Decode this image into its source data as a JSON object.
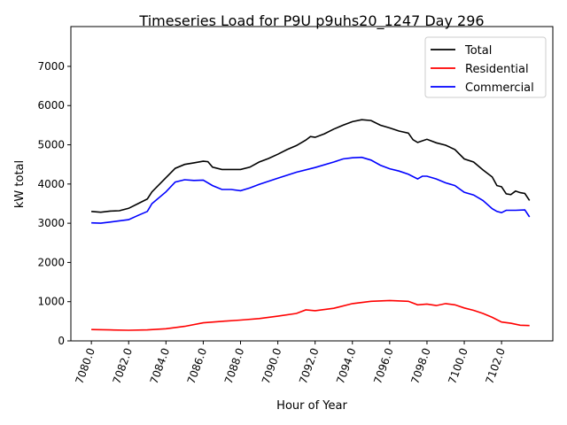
{
  "chart_data": {
    "type": "line",
    "title": "Timeseries Load for P9U p9uhs20_1247  Day 296",
    "xlabel": "Hour of Year",
    "ylabel": "kW total",
    "xlim": [
      7078.9,
      7104.75
    ],
    "ylim": [
      0,
      8015
    ],
    "xticks": [
      7080,
      7082,
      7084,
      7086,
      7088,
      7090,
      7092,
      7094,
      7096,
      7098,
      7100,
      7102
    ],
    "xtick_labels": [
      "7080.0",
      "7082.0",
      "7084.0",
      "7086.0",
      "7088.0",
      "7090.0",
      "7092.0",
      "7094.0",
      "7096.0",
      "7098.0",
      "7100.0",
      "7102.0"
    ],
    "yticks": [
      0,
      1000,
      2000,
      3000,
      4000,
      5000,
      6000,
      7000
    ],
    "ytick_labels": [
      "0",
      "1000",
      "2000",
      "3000",
      "4000",
      "5000",
      "6000",
      "7000"
    ],
    "grid": false,
    "legend_position": "top-right",
    "series": [
      {
        "name": "Total",
        "color": "#000000",
        "x": [
          7080,
          7080.5,
          7081,
          7081.5,
          7082,
          7082.5,
          7083,
          7083.25,
          7084,
          7084.5,
          7085,
          7085.5,
          7086,
          7086.25,
          7086.5,
          7087,
          7087.5,
          7088,
          7088.5,
          7089,
          7089.5,
          7090,
          7090.5,
          7091,
          7091.5,
          7091.75,
          7092,
          7092.5,
          7093,
          7093.5,
          7094,
          7094.5,
          7095,
          7095.5,
          7096,
          7096.5,
          7097,
          7097.25,
          7097.5,
          7098,
          7098.5,
          7099,
          7099.5,
          7100,
          7100.5,
          7101,
          7101.5,
          7101.75,
          7102,
          7102.25,
          7102.5,
          7102.75,
          7103,
          7103.25,
          7103.5
        ],
        "y": [
          3300,
          3280,
          3310,
          3320,
          3380,
          3500,
          3620,
          3800,
          4160,
          4400,
          4500,
          4540,
          4580,
          4570,
          4430,
          4370,
          4370,
          4370,
          4430,
          4560,
          4650,
          4760,
          4880,
          4980,
          5120,
          5210,
          5190,
          5280,
          5400,
          5500,
          5590,
          5640,
          5620,
          5500,
          5430,
          5350,
          5300,
          5130,
          5060,
          5140,
          5050,
          4990,
          4880,
          4640,
          4560,
          4360,
          4180,
          3960,
          3930,
          3750,
          3730,
          3820,
          3780,
          3760,
          3580
        ]
      },
      {
        "name": "Residential",
        "color": "#ff0000",
        "x": [
          7080,
          7081,
          7082,
          7083,
          7084,
          7085,
          7086,
          7087,
          7088,
          7089,
          7090,
          7091,
          7091.5,
          7092,
          7093,
          7094,
          7095,
          7096,
          7097,
          7097.5,
          7098,
          7098.5,
          7099,
          7099.5,
          7100,
          7100.5,
          7101,
          7101.5,
          7102,
          7102.5,
          7103,
          7103.5
        ],
        "y": [
          290,
          280,
          270,
          280,
          310,
          370,
          460,
          500,
          530,
          570,
          630,
          700,
          790,
          770,
          830,
          950,
          1010,
          1030,
          1010,
          920,
          940,
          900,
          950,
          920,
          840,
          780,
          700,
          600,
          480,
          450,
          400,
          390
        ]
      },
      {
        "name": "Commercial",
        "color": "#0000ff",
        "x": [
          7080,
          7080.5,
          7081,
          7082,
          7082.5,
          7083,
          7083.25,
          7084,
          7084.5,
          7085,
          7085.5,
          7086,
          7086.5,
          7087,
          7087.5,
          7088,
          7088.5,
          7089,
          7090,
          7091,
          7092,
          7093,
          7093.5,
          7094,
          7094.5,
          7095,
          7095.5,
          7096,
          7096.5,
          7097,
          7097.5,
          7097.75,
          7098,
          7098.5,
          7099,
          7099.5,
          7100,
          7100.5,
          7101,
          7101.5,
          7101.75,
          7102,
          7102.25,
          7102.75,
          7103.25,
          7103.5
        ],
        "y": [
          3010,
          3000,
          3030,
          3090,
          3200,
          3300,
          3500,
          3800,
          4050,
          4110,
          4090,
          4100,
          3960,
          3860,
          3860,
          3830,
          3900,
          3990,
          4150,
          4300,
          4420,
          4560,
          4640,
          4670,
          4680,
          4610,
          4480,
          4390,
          4330,
          4250,
          4130,
          4200,
          4200,
          4130,
          4030,
          3960,
          3790,
          3720,
          3580,
          3370,
          3300,
          3270,
          3330,
          3330,
          3340,
          3160
        ]
      }
    ]
  }
}
